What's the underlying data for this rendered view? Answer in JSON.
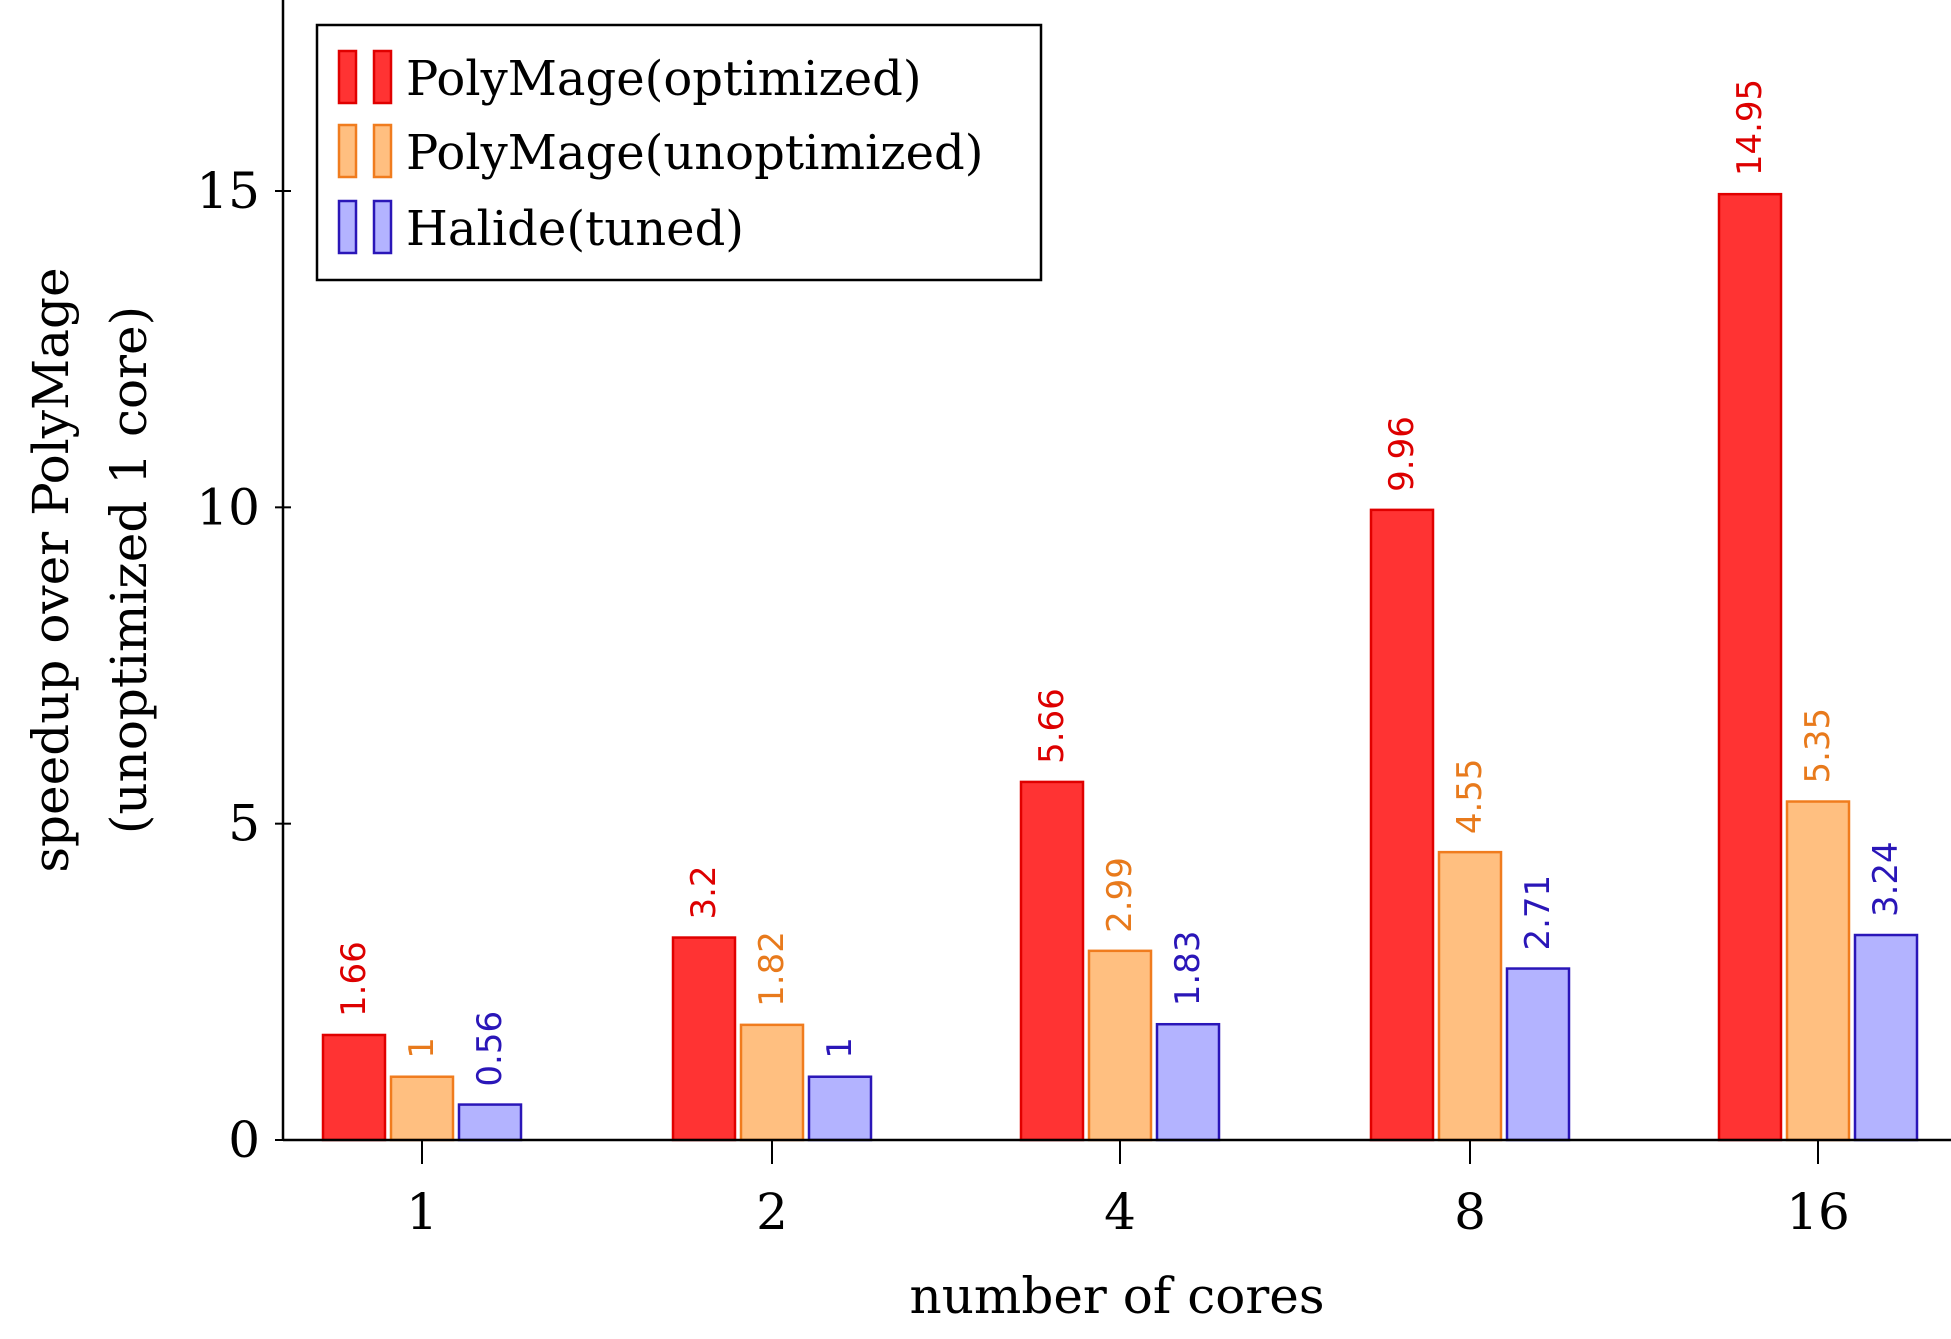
{
  "chart_data": {
    "type": "bar",
    "title": "",
    "xlabel": "number of cores",
    "ylabel": [
      "speedup over PolyMage",
      "(unoptimized 1 core)"
    ],
    "categories": [
      "1",
      "2",
      "4",
      "8",
      "16"
    ],
    "ylim": [
      0,
      18
    ],
    "yticks": [
      0,
      5,
      10,
      15
    ],
    "ytick_labels": [
      "0",
      "5",
      "10",
      "15"
    ],
    "grid": false,
    "legend_position": "top-left",
    "series": [
      {
        "name": "PolyMage(optimized)",
        "fill": "#ff3333",
        "stroke": "#e00000",
        "label_color": "#dd0000",
        "values": [
          1.66,
          3.2,
          5.66,
          9.96,
          14.95
        ],
        "labels": [
          "1.66",
          "3.2",
          "5.66",
          "9.96",
          "14.95"
        ]
      },
      {
        "name": "PolyMage(unoptimized)",
        "fill": "#ffbf80",
        "stroke": "#f07c1e",
        "label_color": "#e87a1c",
        "values": [
          1,
          1.82,
          2.99,
          4.55,
          5.35
        ],
        "labels": [
          "1",
          "1.82",
          "2.99",
          "4.55",
          "5.35"
        ]
      },
      {
        "name": "Halide(tuned)",
        "fill": "#b3b3ff",
        "stroke": "#2a16b8",
        "label_color": "#2a16b8",
        "values": [
          0.56,
          1,
          1.83,
          2.71,
          3.24
        ],
        "labels": [
          "0.56",
          "1",
          "1.83",
          "2.71",
          "3.24"
        ]
      }
    ]
  }
}
